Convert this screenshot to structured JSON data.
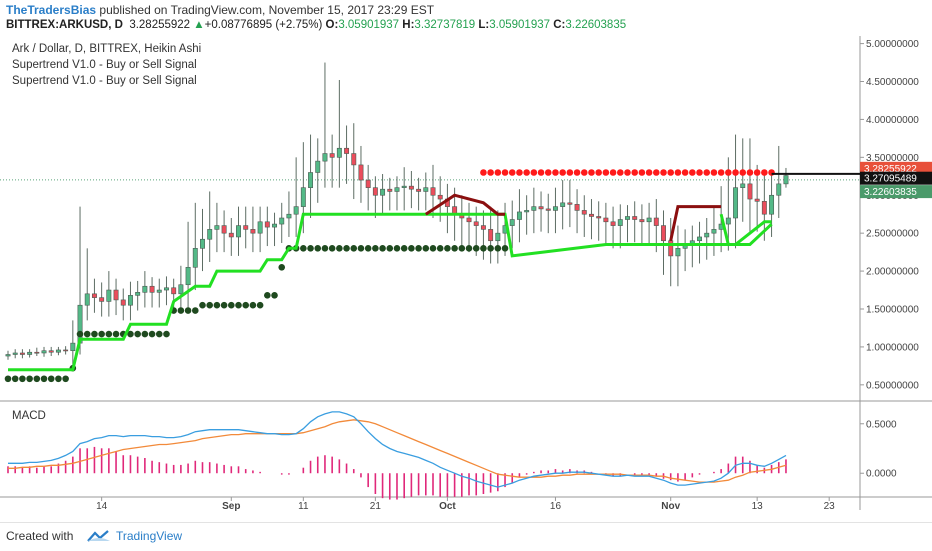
{
  "header": {
    "author": "TheTradersBias",
    "published": "published on TradingView.com, November 15, 2017 23:29 EST",
    "symbol": "BITTREX:ARKUSD, D",
    "last": "3.28255922",
    "change_arrow": "▲",
    "change": "+0.08776895 (+2.75%)",
    "o_label": "O:",
    "o": "3.05901937",
    "h_label": "H:",
    "h": "3.32737819",
    "l_label": "L:",
    "l": "3.05901937",
    "c_label": "C:",
    "c": "3.22603835"
  },
  "legend": {
    "main": "Ark / Dollar, D, BITTREX, Heikin Ashi",
    "ind1": "Supertrend V1.0 - Buy or Sell Signal",
    "ind2": "Supertrend V1.0 - Buy or Sell Signal",
    "macd": "MACD"
  },
  "footer": {
    "created": "Created with",
    "brand": "TradingView"
  },
  "colors": {
    "up": "#53b987",
    "down": "#eb4d5c",
    "st_green": "#22e022",
    "st_dark": "#1f4a1f",
    "st_red": "#ff1a1a",
    "st_maroon": "#8b0f0f",
    "macd": "#3a9ee0",
    "signal": "#f28a3a",
    "hist": "#e0287a"
  },
  "chart_data": [
    {
      "type": "candlestick",
      "title": "Ark / Dollar, D, BITTREX, Heikin Ashi",
      "ylim": [
        0.3,
        5.1
      ],
      "y_ticks": [
        0.5,
        1.0,
        1.5,
        2.0,
        2.5,
        3.0,
        3.5,
        4.0,
        4.5,
        5.0
      ],
      "y_tick_labels": [
        "0.50000000",
        "1.00000000",
        "1.50000000",
        "2.00000000",
        "2.50000000",
        "3.00000000",
        "3.50000000",
        "4.00000000",
        "4.50000000",
        "5.00000000"
      ],
      "x_tick_labels": [
        {
          "label": "14",
          "day": 13
        },
        {
          "label": "Sep",
          "day": 31
        },
        {
          "label": "11",
          "day": 41
        },
        {
          "label": "21",
          "day": 51
        },
        {
          "label": "Oct",
          "day": 61
        },
        {
          "label": "16",
          "day": 76
        },
        {
          "label": "Nov",
          "day": 92
        },
        {
          "label": "13",
          "day": 104
        },
        {
          "label": "23",
          "day": 114
        }
      ],
      "x_range_days": [
        0,
        118
      ],
      "price_labels": [
        {
          "value": 3.28255922,
          "text": "3.28255922",
          "kind": "red"
        },
        {
          "value": 3.27095489,
          "text": "3.27095489",
          "kind": "black"
        },
        {
          "value": 3.22603835,
          "text": "3.22603835",
          "kind": "green"
        }
      ],
      "close": [
        0.9,
        0.92,
        0.9,
        0.93,
        0.92,
        0.95,
        0.93,
        0.96,
        0.95,
        1.05,
        1.55,
        1.7,
        1.65,
        1.6,
        1.75,
        1.62,
        1.55,
        1.68,
        1.72,
        1.8,
        1.72,
        1.75,
        1.78,
        1.7,
        1.82,
        2.05,
        2.3,
        2.42,
        2.55,
        2.6,
        2.5,
        2.45,
        2.6,
        2.55,
        2.5,
        2.65,
        2.58,
        2.62,
        2.7,
        2.75,
        2.85,
        3.1,
        3.3,
        3.45,
        3.55,
        3.5,
        3.62,
        3.55,
        3.4,
        3.2,
        3.1,
        3.0,
        3.08,
        3.05,
        3.1,
        3.12,
        3.08,
        3.05,
        3.1,
        3.0,
        2.95,
        2.85,
        2.75,
        2.7,
        2.65,
        2.6,
        2.55,
        2.4,
        2.5,
        2.6,
        2.68,
        2.78,
        2.8,
        2.85,
        2.82,
        2.8,
        2.85,
        2.9,
        2.88,
        2.8,
        2.75,
        2.72,
        2.7,
        2.65,
        2.6,
        2.68,
        2.72,
        2.68,
        2.65,
        2.7,
        2.6,
        2.4,
        2.2,
        2.3,
        2.35,
        2.4,
        2.45,
        2.5,
        2.55,
        2.62,
        2.7,
        3.1,
        3.15,
        2.95,
        2.92,
        2.75,
        3.0,
        3.15,
        3.26
      ],
      "wick_high_extra": [
        0.05,
        0.05,
        0.05,
        0.04,
        0.06,
        0.05,
        0.05,
        0.04,
        0.05,
        0.3,
        1.3,
        0.6,
        0.2,
        0.2,
        0.25,
        0.15,
        0.15,
        0.18,
        0.15,
        0.2,
        0.12,
        0.15,
        0.15,
        0.12,
        0.25,
        0.6,
        0.6,
        0.4,
        0.5,
        0.3,
        0.2,
        0.2,
        0.25,
        0.25,
        0.3,
        0.2,
        0.2,
        0.15,
        0.2,
        0.3,
        0.65,
        0.6,
        0.5,
        0.3,
        1.2,
        0.25,
        0.9,
        0.3,
        0.4,
        0.25,
        0.2,
        0.15,
        0.2,
        0.15,
        0.15,
        0.25,
        0.2,
        0.15,
        0.2,
        0.3,
        0.25,
        0.2,
        0.25,
        0.25,
        0.2,
        0.2,
        0.2,
        0.3,
        0.3,
        0.3,
        0.25,
        0.3,
        0.2,
        0.25,
        0.2,
        0.2,
        0.25,
        0.3,
        0.3,
        0.2,
        0.2,
        0.2,
        0.2,
        0.2,
        0.2,
        0.2,
        0.15,
        0.2,
        0.2,
        0.2,
        0.25,
        0.2,
        0.3,
        0.3,
        0.2,
        0.2,
        0.2,
        0.2,
        0.3,
        0.5,
        0.8,
        0.7,
        0.6,
        0.6,
        0.45,
        0.35,
        0.3,
        0.5,
        0.1
      ],
      "wick_low_extra": [
        0.05,
        0.05,
        0.05,
        0.04,
        0.04,
        0.05,
        0.05,
        0.04,
        0.05,
        0.2,
        0.15,
        0.2,
        0.2,
        0.2,
        0.2,
        0.2,
        0.2,
        0.2,
        0.2,
        0.2,
        0.2,
        0.2,
        0.2,
        0.2,
        0.25,
        0.3,
        0.3,
        0.3,
        0.3,
        0.3,
        0.25,
        0.25,
        0.25,
        0.25,
        0.25,
        0.25,
        0.25,
        0.25,
        0.25,
        0.25,
        0.3,
        0.35,
        0.4,
        0.4,
        0.35,
        0.4,
        0.4,
        0.4,
        0.45,
        0.3,
        0.3,
        0.3,
        0.25,
        0.25,
        0.25,
        0.3,
        0.25,
        0.25,
        0.25,
        0.3,
        0.3,
        0.35,
        0.35,
        0.4,
        0.4,
        0.4,
        0.4,
        0.3,
        0.3,
        0.3,
        0.3,
        0.3,
        0.3,
        0.3,
        0.3,
        0.3,
        0.3,
        0.3,
        0.3,
        0.3,
        0.3,
        0.3,
        0.3,
        0.3,
        0.3,
        0.3,
        0.3,
        0.3,
        0.3,
        0.3,
        0.35,
        0.45,
        0.4,
        0.4,
        0.3,
        0.3,
        0.3,
        0.3,
        0.3,
        0.3,
        0.35,
        0.4,
        0.45,
        0.45,
        0.4,
        0.35,
        0.3,
        0.3,
        0.05
      ],
      "supertrend_green_path": [
        [
          0,
          0.7
        ],
        [
          9,
          0.7
        ],
        [
          10,
          1.1
        ],
        [
          16,
          1.1
        ],
        [
          17,
          1.3
        ],
        [
          22,
          1.3
        ],
        [
          23,
          1.6
        ],
        [
          26,
          1.8
        ],
        [
          28,
          1.8
        ],
        [
          29,
          2.0
        ],
        [
          35,
          2.0
        ],
        [
          36,
          2.15
        ],
        [
          38,
          2.15
        ],
        [
          39,
          2.3
        ],
        [
          40,
          2.3
        ],
        [
          41,
          2.75
        ],
        [
          69,
          2.75
        ],
        [
          70,
          2.2
        ],
        [
          83,
          2.35
        ],
        [
          98,
          2.35
        ],
        [
          99,
          2.35
        ],
        [
          101,
          2.35
        ],
        [
          103,
          2.5
        ],
        [
          105,
          2.65
        ],
        [
          106,
          2.65
        ]
      ],
      "supertrend_green2_path": [
        [
          99,
          2.75
        ],
        [
          100,
          2.35
        ],
        [
          103,
          2.35
        ],
        [
          106,
          2.62
        ]
      ],
      "supertrend_dark_dots": [
        {
          "from": 0,
          "to": 8,
          "value": 0.58
        },
        {
          "from": 9,
          "to": 9,
          "value": 0.72
        },
        {
          "from": 10,
          "to": 22,
          "value": 1.17
        },
        {
          "from": 23,
          "to": 26,
          "value": 1.48
        },
        {
          "from": 27,
          "to": 35,
          "value": 1.55
        },
        {
          "from": 36,
          "to": 37,
          "value": 1.68
        },
        {
          "from": 38,
          "to": 38,
          "value": 2.05
        },
        {
          "from": 39,
          "to": 69,
          "value": 2.3
        }
      ],
      "supertrend_red_dots": {
        "from": 66,
        "to": 106,
        "value": 3.3
      },
      "supertrend_maroon_path": [
        [
          58,
          2.75
        ],
        [
          62,
          3.0
        ],
        [
          66,
          2.9
        ],
        [
          68,
          2.75
        ],
        [
          69,
          2.75
        ]
      ],
      "supertrend_maroon2_path": [
        [
          92,
          2.4
        ],
        [
          93,
          2.85
        ],
        [
          98,
          2.85
        ],
        [
          99,
          2.85
        ]
      ]
    },
    {
      "type": "line",
      "title": "MACD",
      "ylim": [
        -0.22,
        0.72
      ],
      "y_ticks": [
        0.0,
        0.5
      ],
      "y_tick_labels": [
        "0.0000",
        "0.5000"
      ],
      "macd": [
        0.1,
        0.1,
        0.1,
        0.11,
        0.11,
        0.12,
        0.13,
        0.15,
        0.18,
        0.22,
        0.3,
        0.32,
        0.35,
        0.36,
        0.38,
        0.38,
        0.37,
        0.38,
        0.38,
        0.38,
        0.37,
        0.37,
        0.36,
        0.36,
        0.37,
        0.39,
        0.42,
        0.43,
        0.44,
        0.44,
        0.44,
        0.44,
        0.44,
        0.43,
        0.42,
        0.41,
        0.4,
        0.4,
        0.39,
        0.39,
        0.4,
        0.45,
        0.52,
        0.57,
        0.6,
        0.62,
        0.62,
        0.6,
        0.57,
        0.5,
        0.42,
        0.35,
        0.29,
        0.25,
        0.22,
        0.2,
        0.18,
        0.16,
        0.13,
        0.1,
        0.06,
        0.03,
        0.0,
        -0.03,
        -0.05,
        -0.08,
        -0.1,
        -0.12,
        -0.14,
        -0.12,
        -0.1,
        -0.07,
        -0.05,
        -0.03,
        -0.02,
        -0.01,
        0.0,
        0.0,
        0.01,
        0.01,
        0.01,
        0.0,
        -0.01,
        -0.02,
        -0.03,
        -0.03,
        -0.02,
        -0.03,
        -0.03,
        -0.03,
        -0.05,
        -0.07,
        -0.1,
        -0.12,
        -0.12,
        -0.11,
        -0.1,
        -0.09,
        -0.08,
        -0.05,
        0.0,
        0.08,
        0.1,
        0.1,
        0.08,
        0.07,
        0.1,
        0.14,
        0.18
      ],
      "signal": [
        0.05,
        0.05,
        0.06,
        0.06,
        0.07,
        0.07,
        0.08,
        0.08,
        0.09,
        0.1,
        0.12,
        0.14,
        0.16,
        0.18,
        0.2,
        0.22,
        0.24,
        0.25,
        0.26,
        0.27,
        0.28,
        0.29,
        0.29,
        0.3,
        0.31,
        0.32,
        0.33,
        0.35,
        0.36,
        0.37,
        0.38,
        0.39,
        0.39,
        0.4,
        0.4,
        0.4,
        0.4,
        0.4,
        0.4,
        0.4,
        0.4,
        0.41,
        0.43,
        0.45,
        0.47,
        0.5,
        0.52,
        0.53,
        0.54,
        0.53,
        0.52,
        0.5,
        0.47,
        0.44,
        0.41,
        0.38,
        0.35,
        0.32,
        0.29,
        0.26,
        0.23,
        0.2,
        0.17,
        0.14,
        0.11,
        0.08,
        0.05,
        0.02,
        -0.01,
        -0.02,
        -0.03,
        -0.04,
        -0.04,
        -0.04,
        -0.04,
        -0.03,
        -0.03,
        -0.02,
        -0.02,
        -0.01,
        -0.01,
        -0.01,
        -0.01,
        -0.01,
        -0.01,
        -0.01,
        -0.02,
        -0.02,
        -0.02,
        -0.02,
        -0.03,
        -0.03,
        -0.05,
        -0.06,
        -0.07,
        -0.08,
        -0.09,
        -0.09,
        -0.09,
        -0.08,
        -0.07,
        -0.04,
        -0.02,
        0.01,
        0.02,
        0.03,
        0.04,
        0.06,
        0.08
      ]
    }
  ]
}
